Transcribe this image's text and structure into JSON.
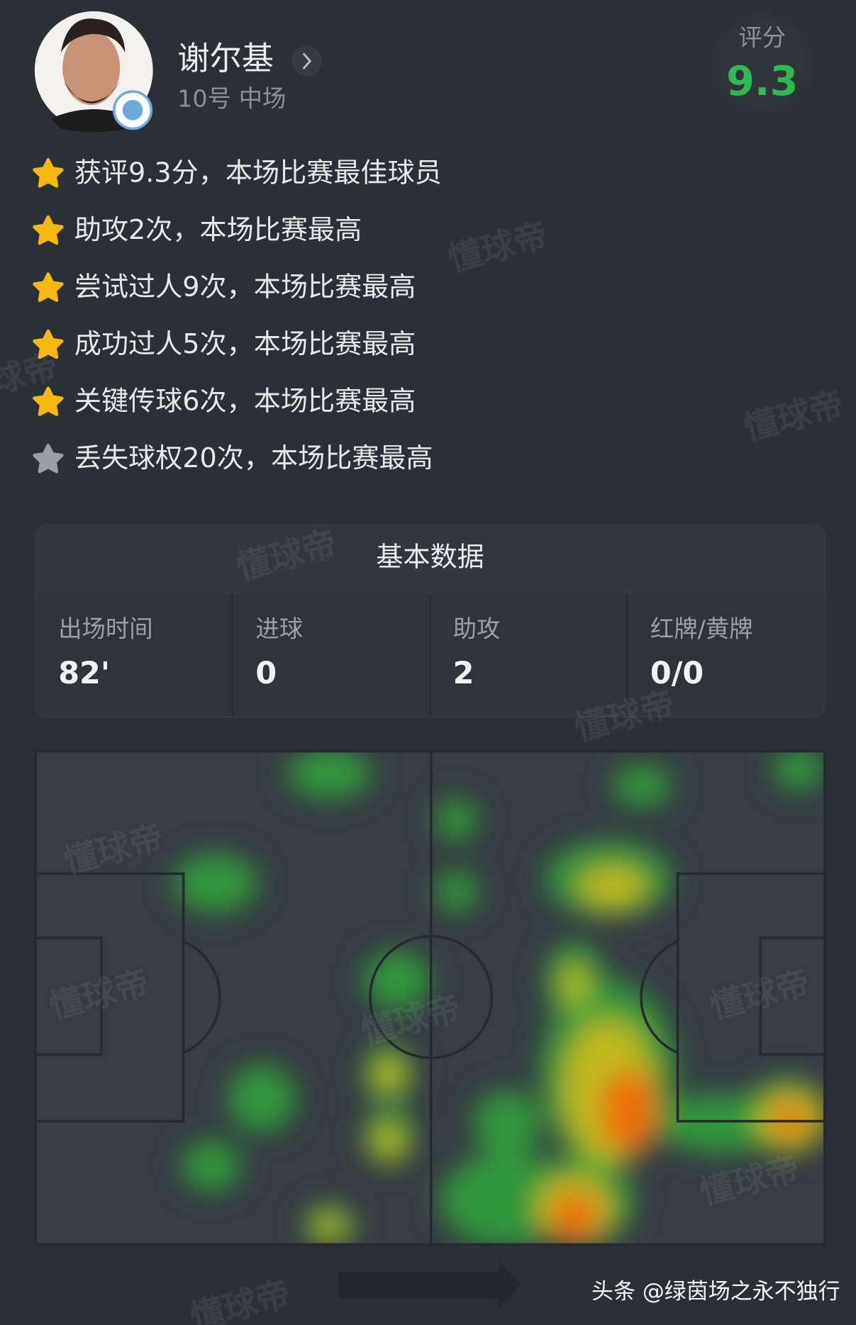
{
  "header": {
    "name": "谢尔基",
    "subtitle": "10号 中场",
    "rating_label": "评分",
    "rating": "9.3"
  },
  "highlights": [
    {
      "text": "获评9.3分，本场比赛最佳球员",
      "star": "#f5b80f"
    },
    {
      "text": "助攻2次，本场比赛最高",
      "star": "#f5b80f"
    },
    {
      "text": "尝试过人9次，本场比赛最高",
      "star": "#f5b80f"
    },
    {
      "text": "成功过人5次，本场比赛最高",
      "star": "#f5b80f"
    },
    {
      "text": "关键传球6次，本场比赛最高",
      "star": "#f5b80f"
    },
    {
      "text": "丢失球权20次，本场比赛最高",
      "star": "#9a9da3"
    }
  ],
  "basic_stats": {
    "title": "基本数据",
    "items": [
      {
        "label": "出场时间",
        "value": "82'"
      },
      {
        "label": "进球",
        "value": "0"
      },
      {
        "label": "助攻",
        "value": "2"
      },
      {
        "label": "红牌/黄牌",
        "value": "0/0"
      }
    ]
  },
  "watermark": "懂球帝",
  "footer": "头条 @绿茵场之永不独行"
}
